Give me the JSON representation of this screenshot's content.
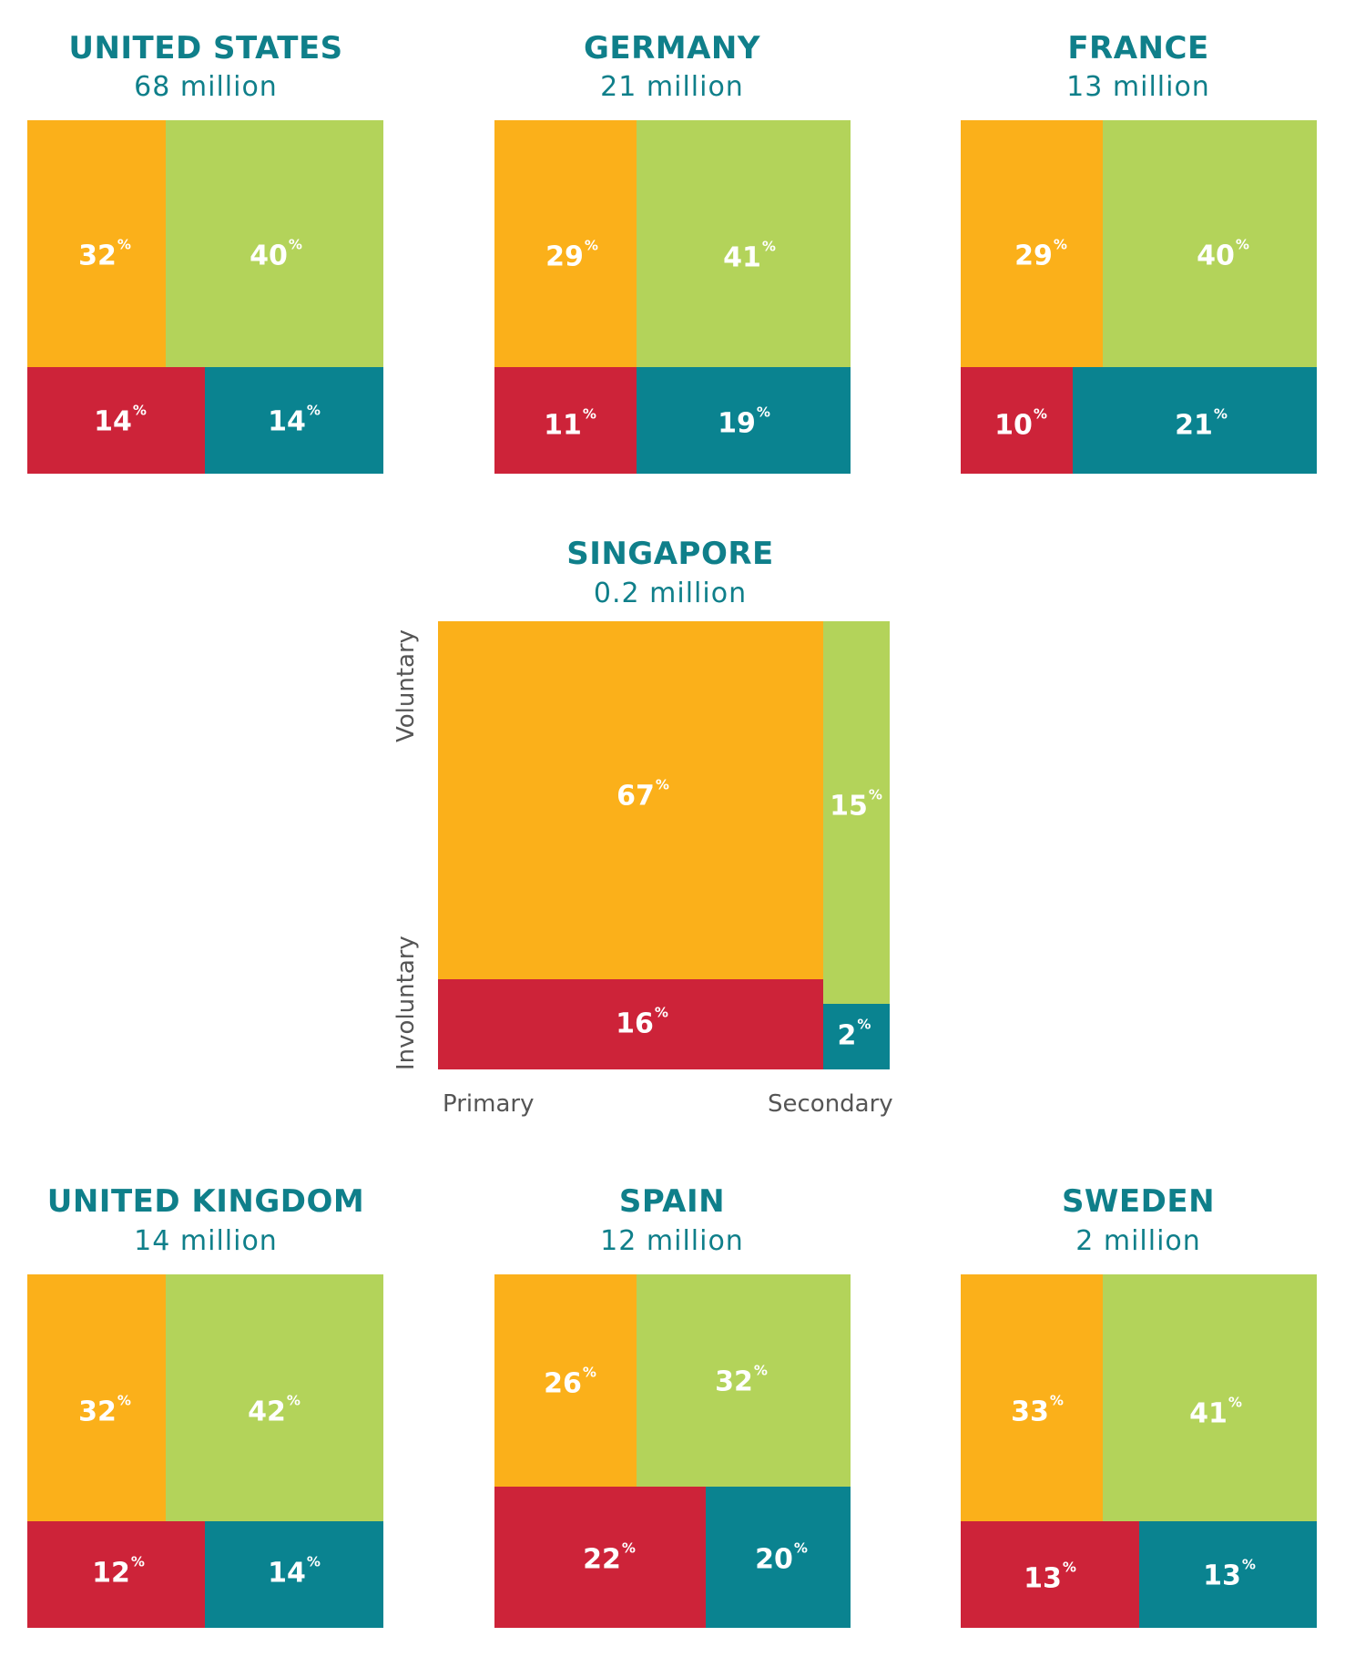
{
  "colors": {
    "voluntary_primary": "#fbb01a",
    "voluntary_secondary": "#b3d35a",
    "involuntary_primary": "#cd2339",
    "involuntary_secondary": "#0a8390",
    "title": "#0f7f8a",
    "axis_text": "#555555"
  },
  "axis_labels": {
    "y_top": "Voluntary",
    "y_bottom": "Involuntary",
    "x_left": "Primary",
    "x_right": "Secondary"
  },
  "chart_data": [
    {
      "type": "treemap",
      "country": "UNITED STATES",
      "population": "68 million",
      "segments": {
        "voluntary_primary": 32,
        "voluntary_secondary": 40,
        "involuntary_primary": 14,
        "involuntary_secondary": 14
      }
    },
    {
      "type": "treemap",
      "country": "GERMANY",
      "population": "21 million",
      "segments": {
        "voluntary_primary": 29,
        "voluntary_secondary": 41,
        "involuntary_primary": 11,
        "involuntary_secondary": 19
      }
    },
    {
      "type": "treemap",
      "country": "FRANCE",
      "population": "13 million",
      "segments": {
        "voluntary_primary": 29,
        "voluntary_secondary": 40,
        "involuntary_primary": 10,
        "involuntary_secondary": 21
      }
    },
    {
      "type": "treemap",
      "country": "SINGAPORE",
      "population": "0.2 million",
      "segments": {
        "voluntary_primary": 67,
        "voluntary_secondary": 15,
        "involuntary_primary": 16,
        "involuntary_secondary": 2
      }
    },
    {
      "type": "treemap",
      "country": "UNITED KINGDOM",
      "population": "14 million",
      "segments": {
        "voluntary_primary": 32,
        "voluntary_secondary": 42,
        "involuntary_primary": 12,
        "involuntary_secondary": 14
      }
    },
    {
      "type": "treemap",
      "country": "SPAIN",
      "population": "12 million",
      "segments": {
        "voluntary_primary": 26,
        "voluntary_secondary": 32,
        "involuntary_primary": 22,
        "involuntary_secondary": 20
      }
    },
    {
      "type": "treemap",
      "country": "SWEDEN",
      "population": "2 million",
      "segments": {
        "voluntary_primary": 33,
        "voluntary_secondary": 41,
        "involuntary_primary": 13,
        "involuntary_secondary": 13
      }
    }
  ]
}
